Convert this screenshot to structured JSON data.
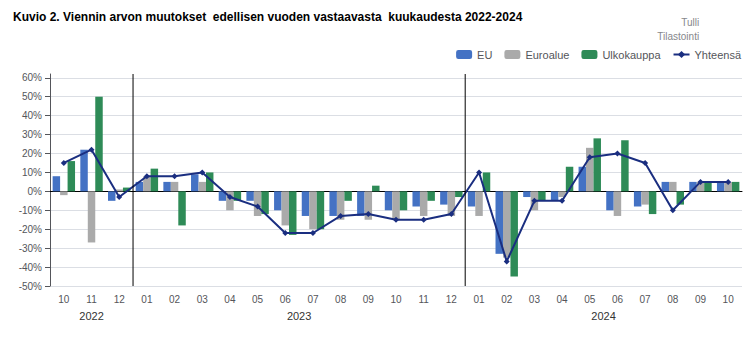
{
  "chart_data": {
    "type": "bar",
    "title": "Kuvio 2. Viennin arvon muutokset  edellisen vuoden vastaavasta  kuukaudesta 2022-2024",
    "subtitle": "Tulli\nTilastointi",
    "categories": [
      "10",
      "11",
      "12",
      "01",
      "02",
      "03",
      "04",
      "05",
      "06",
      "07",
      "08",
      "09",
      "10",
      "11",
      "12",
      "01",
      "02",
      "03",
      "04",
      "05",
      "06",
      "07",
      "08",
      "09",
      "10"
    ],
    "series": [
      {
        "name": "EU",
        "type": "bar",
        "color": "#4472C4",
        "values": [
          8,
          22,
          -5,
          5,
          5,
          9,
          -5,
          -5,
          -10,
          -13,
          -13,
          -13,
          -10,
          -8,
          -7,
          -8,
          -33,
          -3,
          -5,
          13,
          -10,
          -8,
          5,
          5,
          5
        ]
      },
      {
        "name": "Euroalue",
        "type": "bar",
        "color": "#AAAAAA",
        "values": [
          -2,
          -27,
          1,
          8,
          5,
          5,
          -10,
          -13,
          -18,
          -20,
          -15,
          -15,
          -15,
          -13,
          -13,
          -13,
          -35,
          -10,
          -3,
          23,
          -13,
          -7,
          5,
          5,
          5
        ]
      },
      {
        "name": "Ulkokauppa",
        "type": "bar",
        "color": "#2E8B57",
        "values": [
          16,
          50,
          2,
          12,
          -18,
          10,
          -5,
          -12,
          -23,
          -20,
          -5,
          3,
          -10,
          -5,
          -3,
          10,
          -45,
          -5,
          13,
          28,
          27,
          -12,
          -7,
          5,
          5
        ]
      },
      {
        "name": "Yhteensä",
        "type": "line",
        "color": "#1A2E80",
        "marker": "diamond",
        "values": [
          15,
          22,
          -3,
          8,
          8,
          10,
          -3,
          -8,
          -22,
          -22,
          -13,
          -12,
          -15,
          -15,
          -12,
          10,
          -37,
          -5,
          -5,
          18,
          20,
          15,
          -10,
          5,
          5
        ]
      }
    ],
    "ylim": [
      -50,
      62
    ],
    "yticks": [
      {
        "value": -50,
        "label": "-50%"
      },
      {
        "value": -40,
        "label": "-40%"
      },
      {
        "value": -30,
        "label": "-30%"
      },
      {
        "value": -20,
        "label": "-20%"
      },
      {
        "value": -10,
        "label": "-10%"
      },
      {
        "value": 0,
        "label": "0%"
      },
      {
        "value": 10,
        "label": "10%"
      },
      {
        "value": 20,
        "label": "20%"
      },
      {
        "value": 30,
        "label": "30%"
      },
      {
        "value": 40,
        "label": "40%"
      },
      {
        "value": 50,
        "label": "50%"
      },
      {
        "value": 60,
        "label": "60%"
      }
    ],
    "annotations": [
      {
        "text": "2022",
        "from": 0,
        "to": 2
      },
      {
        "text": "2023",
        "from": 3,
        "to": 14
      },
      {
        "text": "2024",
        "from": 15,
        "to": 24
      }
    ],
    "grid": true,
    "legend": "upper right"
  }
}
